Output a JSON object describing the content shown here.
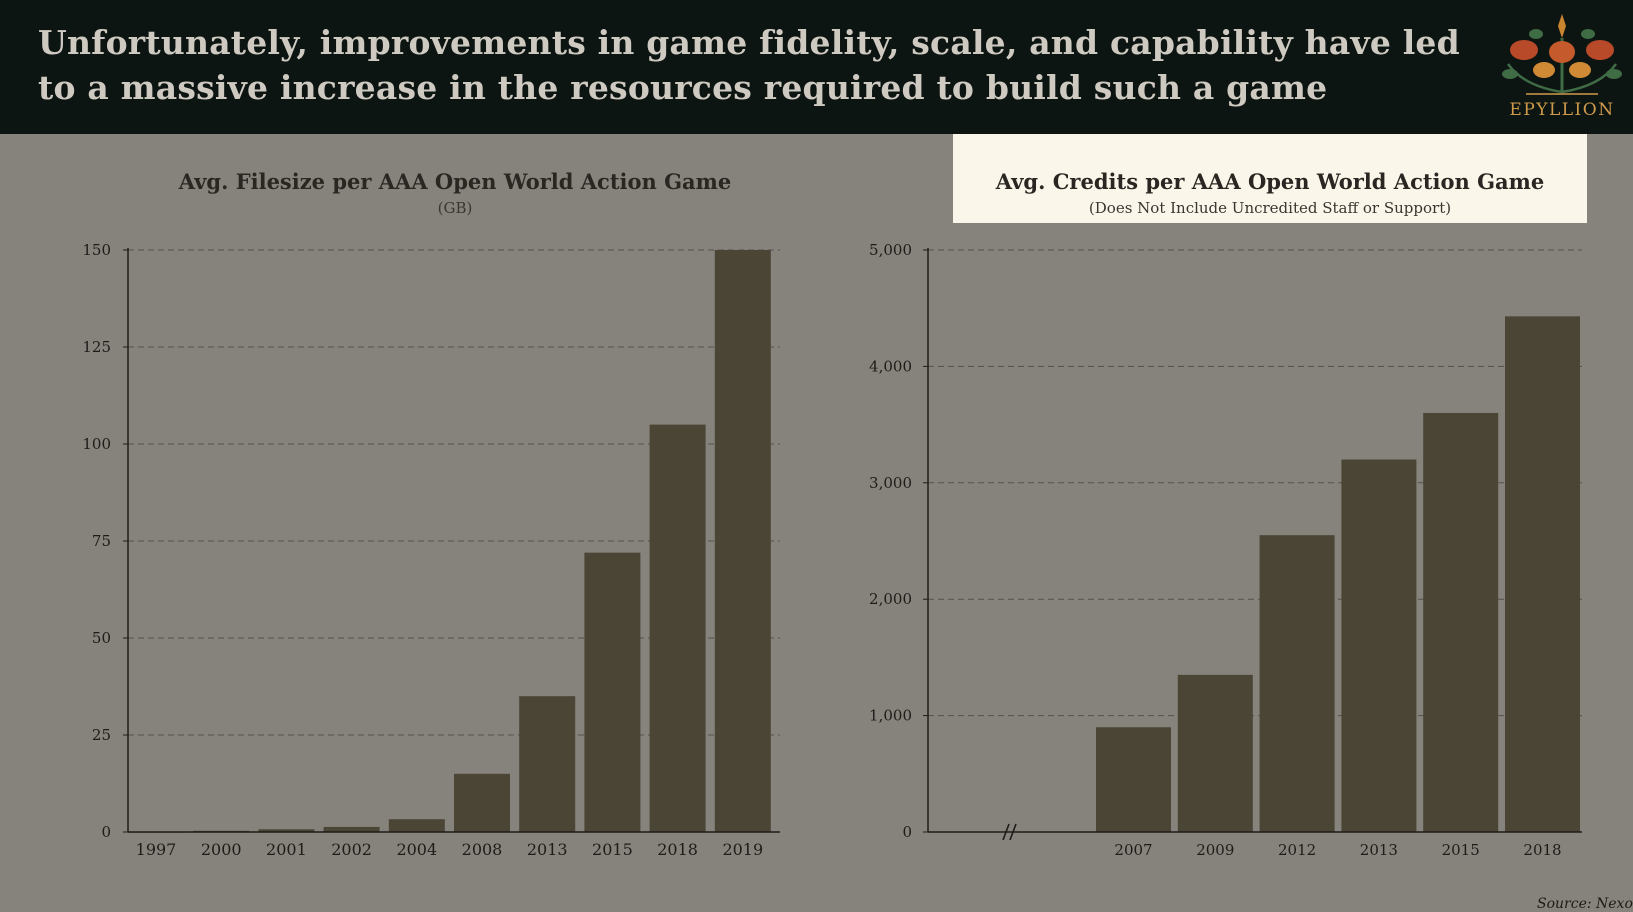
{
  "slide": {
    "headline": "Unfortunately, improvements in game fidelity, scale, and capability have led to a massive increase in the resources required to build such a game",
    "logo_text": "EPYLLION",
    "source": "Source: Nexon"
  },
  "colors": {
    "header_bg": "#0d1512",
    "page_bg": "#86837c",
    "bar": "#4b4536",
    "highlight": "#fbf6ea",
    "logo_accent": "#cf9a4a"
  },
  "chart_data": [
    {
      "type": "bar",
      "title": "Avg. Filesize per AAA Open World Action Game",
      "subtitle": "(GB)",
      "categories": [
        "1997",
        "2000",
        "2001",
        "2002",
        "2004",
        "2008",
        "2013",
        "2015",
        "2018",
        "2019"
      ],
      "values": [
        0.1,
        0.3,
        0.7,
        1.3,
        3.3,
        15,
        35,
        72,
        105,
        150
      ],
      "yticks": [
        "0",
        "25",
        "50",
        "75",
        "100",
        "125",
        "150"
      ],
      "ylim": [
        0,
        150
      ],
      "grid": true
    },
    {
      "type": "bar",
      "title": "Avg. Credits per AAA Open World Action Game",
      "subtitle": "(Does Not Include Uncredited Staff or Support)",
      "categories": [
        "2007",
        "2009",
        "2012",
        "2013",
        "2015",
        "2018"
      ],
      "values": [
        900,
        1350,
        2550,
        3200,
        3600,
        4430
      ],
      "yticks": [
        "0",
        "1,000",
        "2,000",
        "3,000",
        "4,000",
        "5,000"
      ],
      "ylim": [
        0,
        5000
      ],
      "axis_break": true,
      "grid": true
    }
  ]
}
